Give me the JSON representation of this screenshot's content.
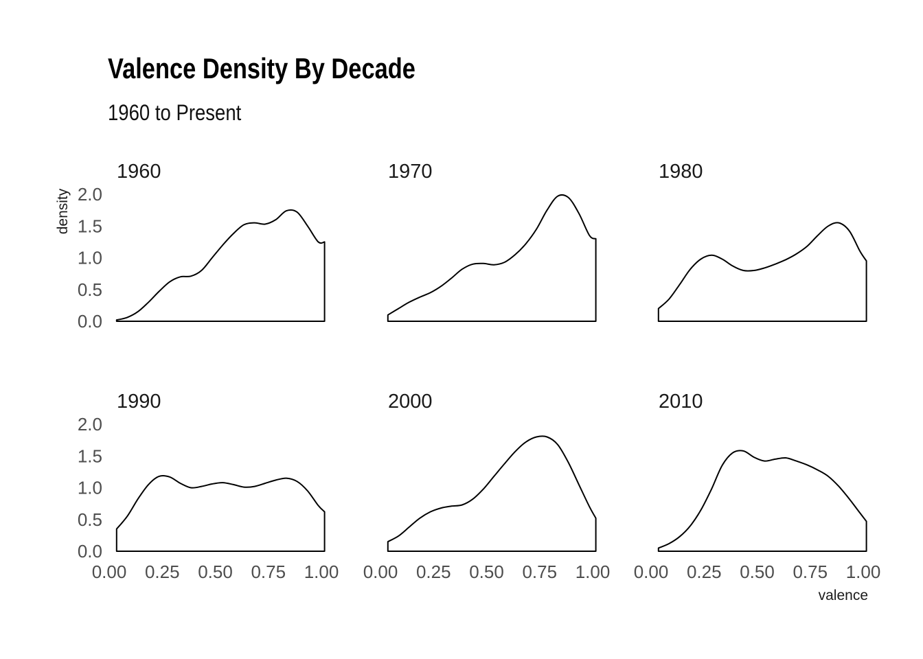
{
  "chart_data": {
    "type": "area",
    "title": "Valence Density By Decade",
    "subtitle": "1960 to Present",
    "xlabel": "valence",
    "ylabel": "density",
    "xlim": [
      0,
      1
    ],
    "ylim": [
      0,
      2
    ],
    "x_ticks": [
      "0.00",
      "0.25",
      "0.50",
      "0.75",
      "1.00"
    ],
    "y_ticks": [
      "0.0",
      "0.5",
      "1.0",
      "1.5",
      "2.0"
    ],
    "grid": false,
    "legend": "none",
    "x": [
      0.0,
      0.05,
      0.1,
      0.15,
      0.2,
      0.25,
      0.3,
      0.35,
      0.4,
      0.45,
      0.5,
      0.55,
      0.6,
      0.65,
      0.7,
      0.75,
      0.8,
      0.85,
      0.9,
      0.95,
      0.98
    ],
    "panels": [
      {
        "name": "1960",
        "values": [
          0.02,
          0.06,
          0.15,
          0.3,
          0.47,
          0.62,
          0.7,
          0.71,
          0.8,
          1.0,
          1.2,
          1.38,
          1.52,
          1.55,
          1.53,
          1.6,
          1.74,
          1.72,
          1.5,
          1.25,
          1.25
        ]
      },
      {
        "name": "1970",
        "values": [
          0.1,
          0.2,
          0.3,
          0.38,
          0.45,
          0.55,
          0.68,
          0.82,
          0.9,
          0.91,
          0.89,
          0.93,
          1.05,
          1.22,
          1.45,
          1.75,
          1.97,
          1.95,
          1.7,
          1.35,
          1.3
        ]
      },
      {
        "name": "1980",
        "values": [
          0.2,
          0.35,
          0.58,
          0.82,
          0.98,
          1.04,
          0.98,
          0.87,
          0.8,
          0.8,
          0.84,
          0.9,
          0.97,
          1.06,
          1.18,
          1.35,
          1.5,
          1.55,
          1.42,
          1.1,
          0.95
        ]
      },
      {
        "name": "1990",
        "values": [
          0.35,
          0.55,
          0.82,
          1.05,
          1.18,
          1.17,
          1.07,
          1.0,
          1.02,
          1.06,
          1.08,
          1.05,
          1.01,
          1.02,
          1.07,
          1.12,
          1.15,
          1.1,
          0.95,
          0.72,
          0.62
        ]
      },
      {
        "name": "2000",
        "values": [
          0.15,
          0.24,
          0.38,
          0.52,
          0.62,
          0.68,
          0.71,
          0.73,
          0.82,
          0.98,
          1.18,
          1.38,
          1.57,
          1.72,
          1.8,
          1.8,
          1.68,
          1.4,
          1.05,
          0.7,
          0.52
        ]
      },
      {
        "name": "2010",
        "values": [
          0.05,
          0.12,
          0.23,
          0.4,
          0.65,
          0.98,
          1.35,
          1.55,
          1.58,
          1.48,
          1.42,
          1.45,
          1.47,
          1.42,
          1.36,
          1.28,
          1.18,
          1.02,
          0.82,
          0.6,
          0.47
        ]
      }
    ]
  }
}
